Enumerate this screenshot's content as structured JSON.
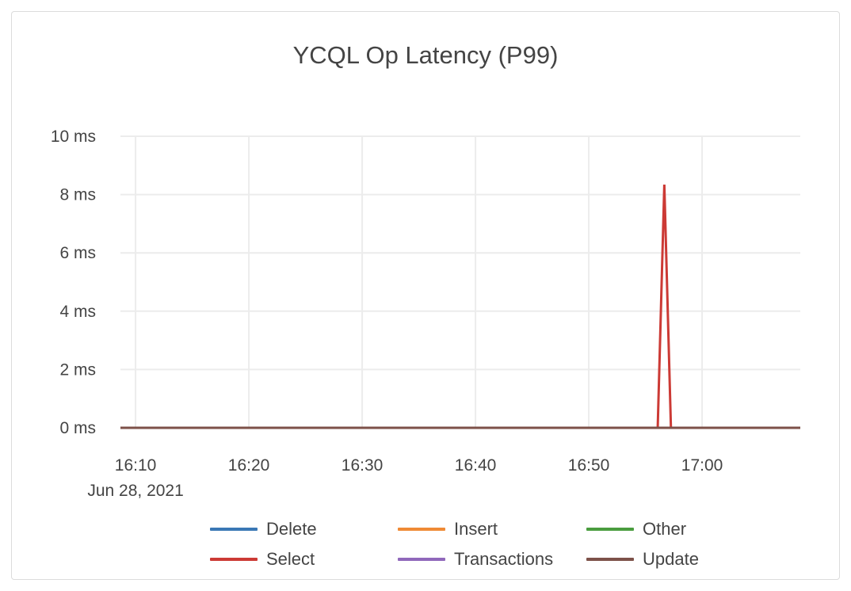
{
  "chart_data": {
    "type": "line",
    "title": "YCQL Op Latency (P99)",
    "xlabel": "",
    "ylabel": "",
    "x_ticks": [
      "16:10",
      "16:20",
      "16:30",
      "16:40",
      "16:50",
      "17:00"
    ],
    "x_date_label": "Jun 28, 2021",
    "xlim": [
      "16:08:40",
      "17:08:40"
    ],
    "y_ticks": [
      "0 ms",
      "2 ms",
      "4 ms",
      "6 ms",
      "8 ms",
      "10 ms"
    ],
    "ylim": [
      0,
      10
    ],
    "y_unit": "ms",
    "grid": true,
    "legend_position": "bottom",
    "x": [
      "16:08:40",
      "16:56:05",
      "16:56:40",
      "16:57:15",
      "17:08:40"
    ],
    "series": [
      {
        "name": "Delete",
        "color": "#3a78b5",
        "values": [
          0,
          0,
          0,
          0,
          0
        ]
      },
      {
        "name": "Insert",
        "color": "#ef8a35",
        "values": [
          0,
          0,
          0,
          0,
          0
        ]
      },
      {
        "name": "Other",
        "color": "#4a9d3f",
        "values": [
          0,
          0,
          0,
          0,
          0
        ]
      },
      {
        "name": "Select",
        "color": "#cc3a35",
        "values": [
          0,
          0,
          8.34,
          0,
          0
        ]
      },
      {
        "name": "Transactions",
        "color": "#9068bb",
        "values": [
          0,
          0,
          0,
          0,
          0
        ]
      },
      {
        "name": "Update",
        "color": "#7d5149",
        "values": [
          0,
          0,
          0,
          0,
          0
        ]
      }
    ]
  }
}
